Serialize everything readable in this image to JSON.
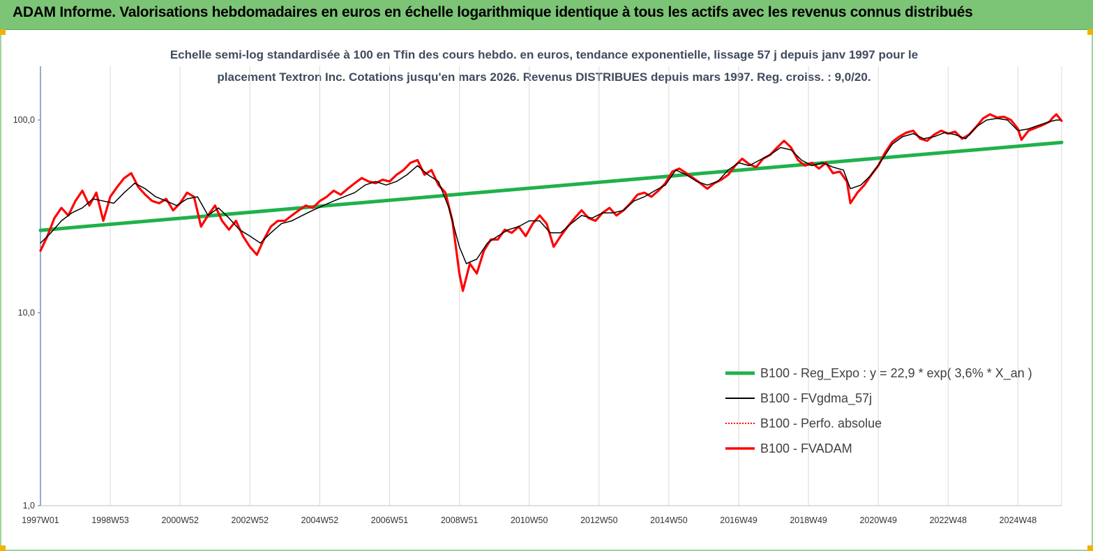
{
  "header": {
    "title": "ADAM Informe. Valorisations hebdomadaires en euros en échelle logarithmique identique à tous les actifs avec les revenus connus distribués",
    "banner_color": "#7cc576"
  },
  "chart_data": {
    "type": "line",
    "title": "",
    "subtitle_lines": [
      "Echelle semi-log standardisée à 100 en Tfin des cours hebdo. en euros, tendance exponentielle, lissage 57 j depuis janv 1997 pour le",
      "placement Textron Inc. Cotations jusqu'en mars 2026. Revenus DISTRIBUES depuis mars 1997. Reg. croiss. : 9,0/20."
    ],
    "xlabel": "",
    "ylabel": "",
    "y_scale": "log",
    "ylim": [
      1,
      190
    ],
    "xlim": [
      1997.0,
      2026.25
    ],
    "y_ticks": [
      {
        "value": 1,
        "label": "1,0"
      },
      {
        "value": 10,
        "label": "10,0"
      },
      {
        "value": 100,
        "label": "100,0"
      }
    ],
    "x_ticks": [
      {
        "value": 1997.0,
        "label": "1997W01"
      },
      {
        "value": 1999.0,
        "label": "1998W53"
      },
      {
        "value": 2001.0,
        "label": "2000W52"
      },
      {
        "value": 2003.0,
        "label": "2002W52"
      },
      {
        "value": 2005.0,
        "label": "2004W52"
      },
      {
        "value": 2007.0,
        "label": "2006W51"
      },
      {
        "value": 2009.0,
        "label": "2008W51"
      },
      {
        "value": 2011.0,
        "label": "2010W50"
      },
      {
        "value": 2013.0,
        "label": "2012W50"
      },
      {
        "value": 2015.0,
        "label": "2014W50"
      },
      {
        "value": 2017.0,
        "label": "2016W49"
      },
      {
        "value": 2019.0,
        "label": "2018W49"
      },
      {
        "value": 2021.0,
        "label": "2020W49"
      },
      {
        "value": 2023.0,
        "label": "2022W48"
      },
      {
        "value": 2025.0,
        "label": "2024W48"
      }
    ],
    "grid": "vertical",
    "legend_position": "bottom-right",
    "series": [
      {
        "name": "B100 - Reg_Expo : y = 22,9 * exp( 3,6% *  X_an )",
        "color": "#1fb14b",
        "style": "solid-thick",
        "points": [
          [
            1997.0,
            26.8
          ],
          [
            2026.25,
            76.5
          ]
        ]
      },
      {
        "name": "B100 - FVgdma_57j",
        "color": "#000000",
        "style": "solid-thin",
        "points": [
          [
            1997.0,
            23
          ],
          [
            1997.3,
            26
          ],
          [
            1997.6,
            30
          ],
          [
            1997.9,
            33
          ],
          [
            1998.2,
            35
          ],
          [
            1998.5,
            39
          ],
          [
            1998.8,
            38
          ],
          [
            1999.1,
            37
          ],
          [
            1999.4,
            42
          ],
          [
            1999.7,
            47
          ],
          [
            2000.0,
            44
          ],
          [
            2000.3,
            40
          ],
          [
            2000.6,
            38
          ],
          [
            2000.9,
            36
          ],
          [
            2001.2,
            39
          ],
          [
            2001.5,
            40
          ],
          [
            2001.8,
            32
          ],
          [
            2002.1,
            35
          ],
          [
            2002.4,
            31
          ],
          [
            2002.7,
            27
          ],
          [
            2003.0,
            25
          ],
          [
            2003.3,
            23
          ],
          [
            2003.6,
            26
          ],
          [
            2003.9,
            29
          ],
          [
            2004.2,
            30
          ],
          [
            2004.5,
            32
          ],
          [
            2004.8,
            34
          ],
          [
            2005.1,
            36
          ],
          [
            2005.4,
            38
          ],
          [
            2005.7,
            40
          ],
          [
            2006.0,
            42
          ],
          [
            2006.3,
            46
          ],
          [
            2006.6,
            48
          ],
          [
            2006.9,
            46
          ],
          [
            2007.2,
            48
          ],
          [
            2007.5,
            52
          ],
          [
            2007.8,
            58
          ],
          [
            2008.1,
            52
          ],
          [
            2008.4,
            48
          ],
          [
            2008.7,
            35
          ],
          [
            2009.0,
            22
          ],
          [
            2009.2,
            18
          ],
          [
            2009.5,
            19
          ],
          [
            2009.8,
            23
          ],
          [
            2010.1,
            25
          ],
          [
            2010.4,
            27
          ],
          [
            2010.7,
            28
          ],
          [
            2011.0,
            30
          ],
          [
            2011.3,
            30
          ],
          [
            2011.6,
            26
          ],
          [
            2011.9,
            26
          ],
          [
            2012.2,
            29
          ],
          [
            2012.5,
            32
          ],
          [
            2012.8,
            31
          ],
          [
            2013.1,
            33
          ],
          [
            2013.4,
            33
          ],
          [
            2013.7,
            34
          ],
          [
            2014.0,
            38
          ],
          [
            2014.3,
            40
          ],
          [
            2014.6,
            43
          ],
          [
            2014.9,
            46
          ],
          [
            2015.2,
            55
          ],
          [
            2015.5,
            52
          ],
          [
            2015.8,
            48
          ],
          [
            2016.1,
            46
          ],
          [
            2016.4,
            48
          ],
          [
            2016.7,
            55
          ],
          [
            2017.0,
            60
          ],
          [
            2017.3,
            58
          ],
          [
            2017.6,
            62
          ],
          [
            2017.9,
            66
          ],
          [
            2018.2,
            72
          ],
          [
            2018.5,
            70
          ],
          [
            2018.8,
            62
          ],
          [
            2019.1,
            58
          ],
          [
            2019.4,
            60
          ],
          [
            2019.7,
            57
          ],
          [
            2020.0,
            55
          ],
          [
            2020.2,
            44
          ],
          [
            2020.5,
            46
          ],
          [
            2020.8,
            52
          ],
          [
            2021.1,
            62
          ],
          [
            2021.4,
            75
          ],
          [
            2021.7,
            82
          ],
          [
            2022.0,
            85
          ],
          [
            2022.3,
            80
          ],
          [
            2022.6,
            82
          ],
          [
            2022.9,
            86
          ],
          [
            2023.2,
            84
          ],
          [
            2023.5,
            80
          ],
          [
            2023.8,
            92
          ],
          [
            2024.1,
            100
          ],
          [
            2024.4,
            102
          ],
          [
            2024.7,
            100
          ],
          [
            2025.0,
            88
          ],
          [
            2025.3,
            90
          ],
          [
            2025.6,
            94
          ],
          [
            2025.9,
            98
          ],
          [
            2026.1,
            100
          ],
          [
            2026.2,
            100
          ]
        ]
      },
      {
        "name": "B100 - Perfo. absolue",
        "color": "#ff0000",
        "style": "dotted",
        "points": []
      },
      {
        "name": "B100 - FVADAM",
        "color": "#ff0000",
        "style": "solid-thick",
        "points": [
          [
            1997.0,
            21
          ],
          [
            1997.2,
            25
          ],
          [
            1997.4,
            31
          ],
          [
            1997.6,
            35
          ],
          [
            1997.8,
            32
          ],
          [
            1998.0,
            38
          ],
          [
            1998.2,
            43
          ],
          [
            1998.4,
            36
          ],
          [
            1998.6,
            42
          ],
          [
            1998.8,
            30
          ],
          [
            1999.0,
            40
          ],
          [
            1999.2,
            45
          ],
          [
            1999.4,
            50
          ],
          [
            1999.6,
            53
          ],
          [
            1999.8,
            45
          ],
          [
            2000.0,
            41
          ],
          [
            2000.2,
            38
          ],
          [
            2000.4,
            37
          ],
          [
            2000.6,
            39
          ],
          [
            2000.8,
            34
          ],
          [
            2001.0,
            37
          ],
          [
            2001.2,
            42
          ],
          [
            2001.4,
            40
          ],
          [
            2001.6,
            28
          ],
          [
            2001.8,
            32
          ],
          [
            2002.0,
            36
          ],
          [
            2002.2,
            30
          ],
          [
            2002.4,
            27
          ],
          [
            2002.6,
            30
          ],
          [
            2002.8,
            25
          ],
          [
            2003.0,
            22
          ],
          [
            2003.2,
            20
          ],
          [
            2003.4,
            24
          ],
          [
            2003.6,
            28
          ],
          [
            2003.8,
            30
          ],
          [
            2004.0,
            30
          ],
          [
            2004.2,
            32
          ],
          [
            2004.4,
            34
          ],
          [
            2004.6,
            36
          ],
          [
            2004.8,
            35
          ],
          [
            2005.0,
            38
          ],
          [
            2005.2,
            40
          ],
          [
            2005.4,
            43
          ],
          [
            2005.6,
            41
          ],
          [
            2005.8,
            44
          ],
          [
            2006.0,
            47
          ],
          [
            2006.2,
            50
          ],
          [
            2006.4,
            48
          ],
          [
            2006.6,
            47
          ],
          [
            2006.8,
            49
          ],
          [
            2007.0,
            48
          ],
          [
            2007.2,
            52
          ],
          [
            2007.4,
            55
          ],
          [
            2007.6,
            60
          ],
          [
            2007.8,
            62
          ],
          [
            2008.0,
            52
          ],
          [
            2008.2,
            55
          ],
          [
            2008.4,
            46
          ],
          [
            2008.6,
            42
          ],
          [
            2008.8,
            30
          ],
          [
            2009.0,
            16
          ],
          [
            2009.1,
            13
          ],
          [
            2009.3,
            18
          ],
          [
            2009.5,
            16
          ],
          [
            2009.7,
            21
          ],
          [
            2009.9,
            24
          ],
          [
            2010.1,
            24
          ],
          [
            2010.3,
            27
          ],
          [
            2010.5,
            26
          ],
          [
            2010.7,
            28
          ],
          [
            2010.9,
            25
          ],
          [
            2011.1,
            29
          ],
          [
            2011.3,
            32
          ],
          [
            2011.5,
            29
          ],
          [
            2011.7,
            22
          ],
          [
            2011.9,
            25
          ],
          [
            2012.1,
            28
          ],
          [
            2012.3,
            31
          ],
          [
            2012.5,
            34
          ],
          [
            2012.7,
            31
          ],
          [
            2012.9,
            30
          ],
          [
            2013.1,
            33
          ],
          [
            2013.3,
            35
          ],
          [
            2013.5,
            32
          ],
          [
            2013.7,
            34
          ],
          [
            2013.9,
            37
          ],
          [
            2014.1,
            41
          ],
          [
            2014.3,
            42
          ],
          [
            2014.5,
            40
          ],
          [
            2014.7,
            43
          ],
          [
            2014.9,
            47
          ],
          [
            2015.1,
            54
          ],
          [
            2015.3,
            56
          ],
          [
            2015.5,
            53
          ],
          [
            2015.7,
            50
          ],
          [
            2015.9,
            47
          ],
          [
            2016.1,
            44
          ],
          [
            2016.3,
            47
          ],
          [
            2016.5,
            49
          ],
          [
            2016.7,
            52
          ],
          [
            2016.9,
            58
          ],
          [
            2017.1,
            63
          ],
          [
            2017.3,
            59
          ],
          [
            2017.5,
            57
          ],
          [
            2017.7,
            63
          ],
          [
            2017.9,
            66
          ],
          [
            2018.1,
            72
          ],
          [
            2018.3,
            78
          ],
          [
            2018.5,
            72
          ],
          [
            2018.7,
            62
          ],
          [
            2018.9,
            58
          ],
          [
            2019.1,
            60
          ],
          [
            2019.3,
            56
          ],
          [
            2019.5,
            60
          ],
          [
            2019.7,
            53
          ],
          [
            2019.9,
            54
          ],
          [
            2020.1,
            48
          ],
          [
            2020.2,
            37
          ],
          [
            2020.4,
            42
          ],
          [
            2020.6,
            46
          ],
          [
            2020.8,
            52
          ],
          [
            2021.0,
            58
          ],
          [
            2021.2,
            68
          ],
          [
            2021.4,
            77
          ],
          [
            2021.6,
            82
          ],
          [
            2021.8,
            86
          ],
          [
            2022.0,
            88
          ],
          [
            2022.2,
            80
          ],
          [
            2022.4,
            78
          ],
          [
            2022.6,
            84
          ],
          [
            2022.8,
            88
          ],
          [
            2023.0,
            85
          ],
          [
            2023.2,
            87
          ],
          [
            2023.4,
            80
          ],
          [
            2023.6,
            84
          ],
          [
            2023.8,
            92
          ],
          [
            2024.0,
            102
          ],
          [
            2024.2,
            107
          ],
          [
            2024.4,
            103
          ],
          [
            2024.6,
            104
          ],
          [
            2024.8,
            100
          ],
          [
            2025.0,
            90
          ],
          [
            2025.1,
            79
          ],
          [
            2025.3,
            88
          ],
          [
            2025.5,
            91
          ],
          [
            2025.7,
            94
          ],
          [
            2025.9,
            98
          ],
          [
            2026.0,
            103
          ],
          [
            2026.1,
            107
          ],
          [
            2026.25,
            99
          ]
        ]
      }
    ]
  }
}
